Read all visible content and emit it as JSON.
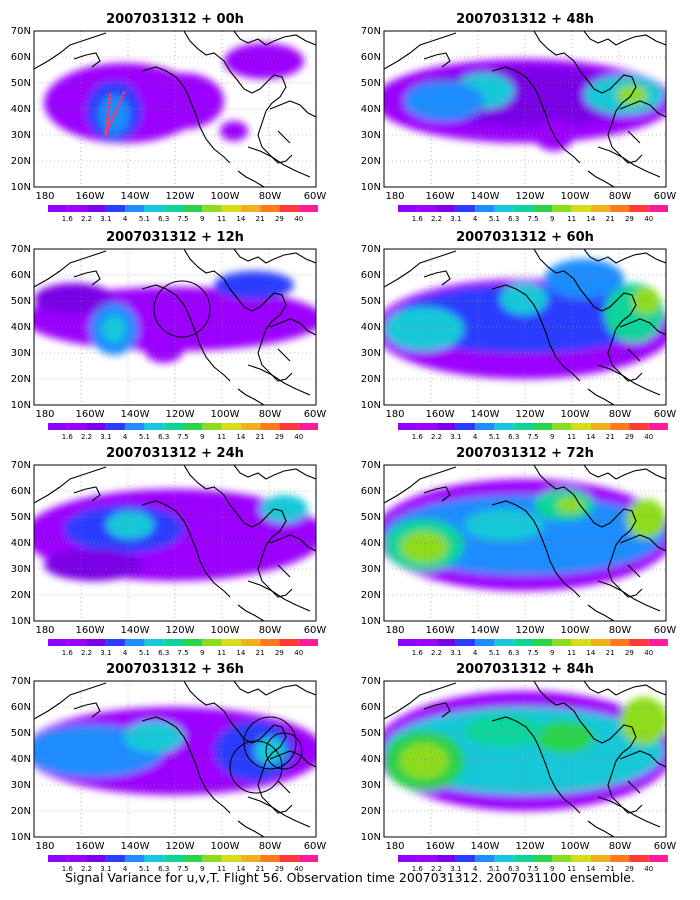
{
  "figure": {
    "caption": "Signal Variance for u,v,T. Flight 56. Observation time 2007031312. 2007031100 ensemble.",
    "lat_labels": [
      "70N",
      "60N",
      "50N",
      "40N",
      "30N",
      "20N",
      "10N"
    ],
    "lon_labels": [
      "180",
      "160W",
      "140W",
      "120W",
      "100W",
      "80W",
      "60W"
    ],
    "colorbar_labels": [
      "1.6",
      "2.2",
      "3.1",
      "4",
      "5.1",
      "6.3",
      "7.5",
      "9",
      "11",
      "14",
      "21",
      "29",
      "40"
    ],
    "colorbar_colors": [
      "#9b00ff",
      "#7a00e6",
      "#2c3cff",
      "#1f8cff",
      "#16c8d8",
      "#10d49a",
      "#2cd24a",
      "#8edc1e",
      "#d6dc18",
      "#f0b21c",
      "#ff7a1c",
      "#ff3a3a",
      "#ff1a9a"
    ],
    "coastline_color": "#000000",
    "panels": [
      {
        "title": "2007031312 + 00h",
        "has_flight_track": true,
        "circles": 0
      },
      {
        "title": "2007031312 + 48h",
        "has_flight_track": false,
        "circles": 0
      },
      {
        "title": "2007031312 + 12h",
        "has_flight_track": false,
        "circles": 1
      },
      {
        "title": "2007031312 + 60h",
        "has_flight_track": false,
        "circles": 0
      },
      {
        "title": "2007031312 + 24h",
        "has_flight_track": false,
        "circles": 0
      },
      {
        "title": "2007031312 + 72h",
        "has_flight_track": false,
        "circles": 0
      },
      {
        "title": "2007031312 + 36h",
        "has_flight_track": false,
        "circles": 3
      },
      {
        "title": "2007031312 + 84h",
        "has_flight_track": false,
        "circles": 0
      }
    ]
  }
}
